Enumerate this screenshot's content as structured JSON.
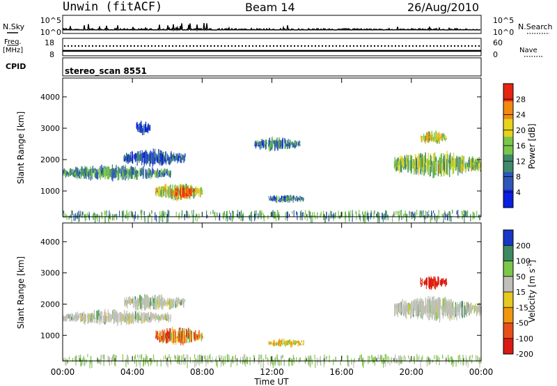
{
  "header": {
    "station": "Unwin (fitACF)",
    "beam": "Beam 14",
    "date": "26/Aug/2010"
  },
  "top_panels": {
    "nsky_label": "N.Sky",
    "nsearch_label": "N.Search",
    "nsky_ticks": [
      "10^5",
      "10^0"
    ],
    "nsearch_ticks": [
      "10^5",
      "10^0"
    ],
    "freq_label_1": "Freq.",
    "freq_label_2": "[MHz]",
    "freq_ticks": [
      "18",
      "8"
    ],
    "nave_label": "Nave",
    "nave_ticks": [
      "60",
      "0"
    ],
    "cpid_label": "CPID",
    "cpid_value": "stereo_scan 8551"
  },
  "chart_data": [
    {
      "type": "heatmap",
      "panel": "power",
      "ylabel": "Slant Range [km]",
      "xlabel": "",
      "yticks": [
        "1000",
        "2000",
        "3000",
        "4000"
      ],
      "ylim": [
        180,
        4600
      ],
      "xlim_hours": [
        0,
        24
      ],
      "colorbar_label": "Power [dB]",
      "colorbar_ticks": [
        "4",
        "8",
        "12",
        "16",
        "20",
        "24",
        "28"
      ],
      "colorbar_range": [
        0,
        32
      ],
      "colors": [
        "#0a1fe0",
        "#2f56b8",
        "#3f8a6a",
        "#7ac64a",
        "#e7d21c",
        "#f28a10",
        "#e52412"
      ],
      "regions": [
        {
          "t": [
            0.0,
            6.2
          ],
          "range": [
            1350,
            1800
          ],
          "level": 0.35
        },
        {
          "t": [
            3.5,
            7.0
          ],
          "range": [
            1800,
            2300
          ],
          "level": 0.2
        },
        {
          "t": [
            5.3,
            8.0
          ],
          "range": [
            700,
            1250
          ],
          "level": 0.55
        },
        {
          "t": [
            6.3,
            7.6
          ],
          "range": [
            750,
            1150
          ],
          "level": 0.9
        },
        {
          "t": [
            4.2,
            5.0
          ],
          "range": [
            2800,
            3250
          ],
          "level": 0.15
        },
        {
          "t": [
            11.0,
            13.6
          ],
          "range": [
            2300,
            2700
          ],
          "level": 0.3
        },
        {
          "t": [
            11.8,
            13.8
          ],
          "range": [
            650,
            850
          ],
          "level": 0.3
        },
        {
          "t": [
            19.0,
            24.0
          ],
          "range": [
            1450,
            2250
          ],
          "level": 0.5
        },
        {
          "t": [
            20.5,
            22.0
          ],
          "range": [
            2500,
            2900
          ],
          "level": 0.6
        }
      ]
    },
    {
      "type": "heatmap",
      "panel": "velocity",
      "ylabel": "Slant Range [km]",
      "xlabel": "Time UT",
      "xticks": [
        "00:00",
        "04:00",
        "08:00",
        "12:00",
        "16:00",
        "20:00",
        "00:00"
      ],
      "yticks": [
        "1000",
        "2000",
        "3000",
        "4000"
      ],
      "ylim": [
        180,
        4600
      ],
      "xlim_hours": [
        0,
        24
      ],
      "colorbar_label": "Velocity [m s^-1]",
      "colorbar_ticks": [
        "200",
        "100",
        "50",
        "15",
        "-15",
        "-50",
        "-100",
        "-200"
      ],
      "colorbar_range": [
        -250,
        250
      ],
      "colors": [
        "#1836c8",
        "#3d8a62",
        "#7cc64a",
        "#c0c0b8",
        "#e6c820",
        "#f0960e",
        "#e8501a",
        "#dc1a14"
      ],
      "regions": [
        {
          "t": [
            0.0,
            6.2
          ],
          "range": [
            1350,
            1800
          ],
          "level": 0.0
        },
        {
          "t": [
            3.5,
            7.0
          ],
          "range": [
            1800,
            2300
          ],
          "level": 0.0
        },
        {
          "t": [
            5.3,
            8.0
          ],
          "range": [
            700,
            1250
          ],
          "level": -110
        },
        {
          "t": [
            11.8,
            13.8
          ],
          "range": [
            650,
            850
          ],
          "level": -80
        },
        {
          "t": [
            19.0,
            24.0
          ],
          "range": [
            1450,
            2250
          ],
          "level": 0.0
        },
        {
          "t": [
            20.5,
            22.0
          ],
          "range": [
            2500,
            2900
          ],
          "level": -180
        }
      ]
    }
  ]
}
